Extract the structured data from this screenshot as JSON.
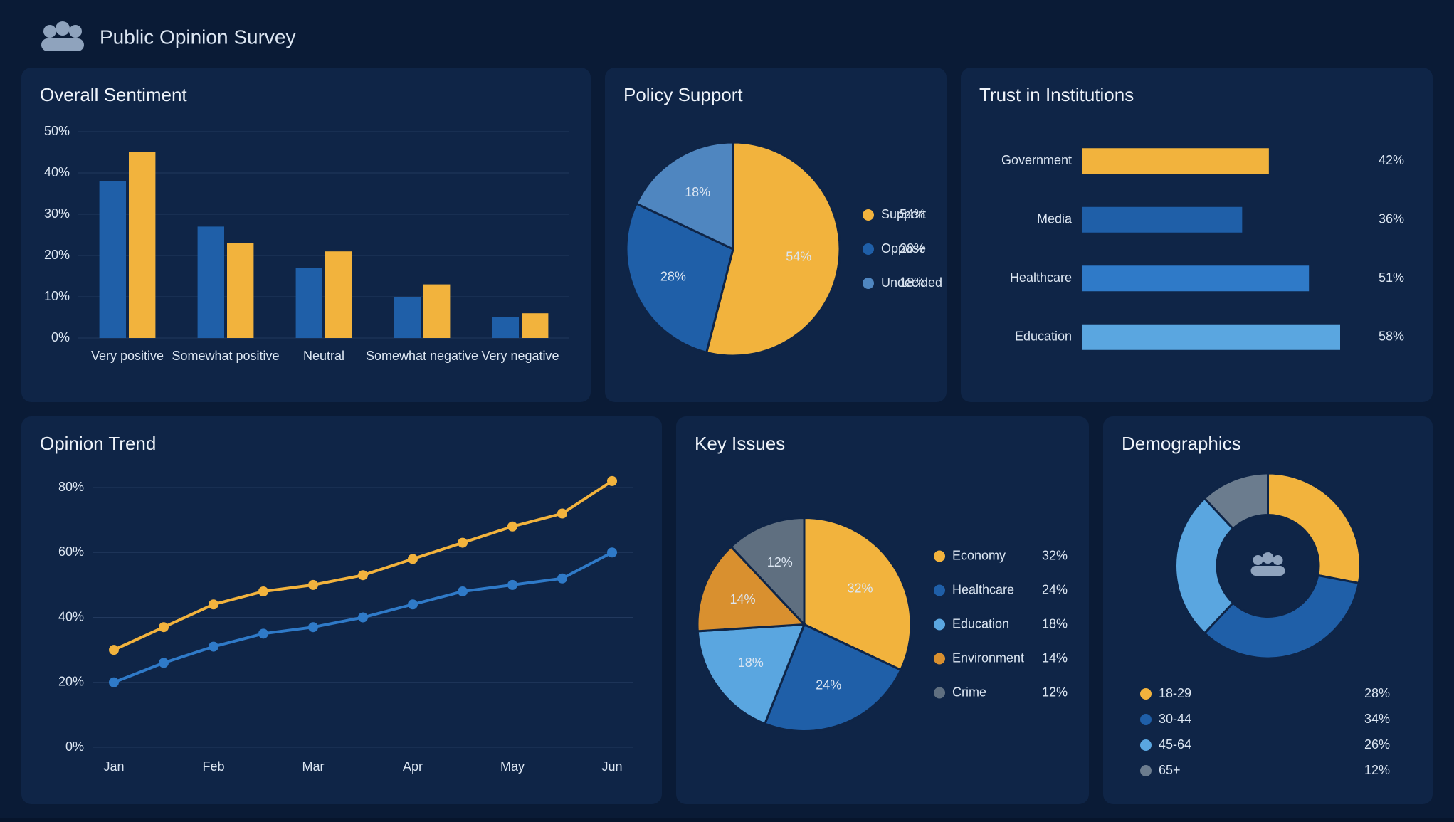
{
  "header": {
    "title": "Public Opinion Survey"
  },
  "chart_data": [
    {
      "type": "bar",
      "title": "Overall Sentiment",
      "categories": [
        "Very positive",
        "Somewhat positive",
        "Neutral",
        "Somewhat negative",
        "Very negative"
      ],
      "series": [
        {
          "color": "#1f5fa8",
          "values": [
            38,
            27,
            17,
            10,
            5
          ]
        },
        {
          "color": "#f2b33d",
          "values": [
            45,
            23,
            21,
            13,
            6
          ]
        }
      ],
      "ylim": [
        0,
        50
      ],
      "yticks": [
        {
          "value": 0,
          "label": "0%"
        },
        {
          "value": 10,
          "label": "10%"
        },
        {
          "value": 20,
          "label": "20%"
        },
        {
          "value": 30,
          "label": "30%"
        },
        {
          "value": 40,
          "label": "40%"
        },
        {
          "value": 50,
          "label": "50%"
        }
      ],
      "grid": true
    },
    {
      "type": "pie",
      "title": "Policy Support",
      "categories": [
        "Support",
        "Oppose",
        "Undecided"
      ],
      "values": [
        54,
        28,
        18
      ],
      "value_labels": [
        "54%",
        "28%",
        "18%"
      ],
      "colors": [
        "#f2b33d",
        "#1f5fa8",
        "#4f86c0"
      ]
    },
    {
      "type": "hbar",
      "title": "Trust in Institutions",
      "categories": [
        "Government",
        "Media",
        "Healthcare",
        "Education"
      ],
      "values": [
        42,
        36,
        51,
        58
      ],
      "value_labels": [
        "42%",
        "36%",
        "51%",
        "58%"
      ],
      "colors": [
        "#f2b33d",
        "#1f5fa8",
        "#2f7ac8",
        "#5aa6e0"
      ]
    },
    {
      "type": "line",
      "title": "Opinion Trend",
      "categories": [
        "Jan",
        null,
        "Feb",
        null,
        "Mar",
        null,
        "Apr",
        null,
        "May",
        null,
        "Jun"
      ],
      "series": [
        {
          "color": "#f2b33d",
          "values": [
            30,
            37,
            44,
            48,
            50,
            53,
            58,
            63,
            68,
            72,
            82
          ]
        },
        {
          "color": "#2f7ac8",
          "values": [
            20,
            26,
            31,
            35,
            37,
            40,
            44,
            48,
            50,
            52,
            60
          ]
        }
      ],
      "ylim": [
        0,
        80
      ],
      "yticks": [
        {
          "value": 0,
          "label": "0%"
        },
        {
          "value": 20,
          "label": "20%"
        },
        {
          "value": 40,
          "label": "40%"
        },
        {
          "value": 60,
          "label": "60%"
        },
        {
          "value": 80,
          "label": "80%"
        }
      ],
      "grid": true
    },
    {
      "type": "pie",
      "title": "Key Issues",
      "categories": [
        "Economy",
        "Healthcare",
        "Education",
        "Environment",
        "Crime"
      ],
      "values": [
        32,
        24,
        18,
        14,
        12
      ],
      "value_labels": [
        "32%",
        "24%",
        "18%",
        "14%",
        "12%"
      ],
      "colors": [
        "#f2b33d",
        "#1f5fa8",
        "#5aa6e0",
        "#d9902f",
        "#5f6f80"
      ]
    },
    {
      "type": "donut",
      "title": "Demographics",
      "categories": [
        "18-29",
        "30-44",
        "45-64",
        "65+"
      ],
      "values": [
        28,
        34,
        26,
        12
      ],
      "value_labels": [
        "28%",
        "34%",
        "26%",
        "12%"
      ],
      "colors": [
        "#f2b33d",
        "#1f5fa8",
        "#5aa6e0",
        "#6b7c8e"
      ]
    }
  ]
}
